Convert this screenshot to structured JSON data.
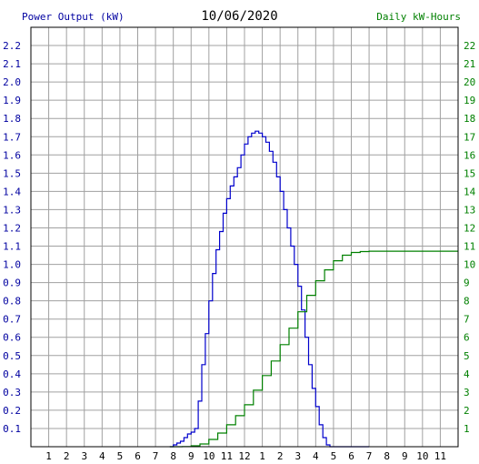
{
  "chart_data": {
    "type": "line",
    "title": "10/06/2020",
    "ylabel": "Power Output (kW)",
    "y2label": "Daily kW-Hours",
    "x_tick_labels": [
      "1",
      "2",
      "3",
      "4",
      "5",
      "6",
      "7",
      "8",
      "9",
      "10",
      "11",
      "12",
      "1",
      "2",
      "3",
      "4",
      "5",
      "6",
      "7",
      "8",
      "9",
      "10",
      "11"
    ],
    "xlim": [
      0,
      24
    ],
    "ylim": [
      0,
      2.3
    ],
    "y_ticks": [
      "0.1",
      "0.2",
      "0.3",
      "0.4",
      "0.5",
      "0.6",
      "0.7",
      "0.8",
      "0.9",
      "1.0",
      "1.1",
      "1.2",
      "1.3",
      "1.4",
      "1.5",
      "1.6",
      "1.7",
      "1.8",
      "1.9",
      "2.0",
      "2.1",
      "2.2"
    ],
    "y2lim": [
      0,
      23
    ],
    "y2_ticks": [
      "1",
      "2",
      "3",
      "4",
      "5",
      "6",
      "7",
      "8",
      "9",
      "10",
      "11",
      "12",
      "13",
      "14",
      "15",
      "16",
      "17",
      "18",
      "19",
      "20",
      "21",
      "22"
    ],
    "grid": true,
    "series": [
      {
        "name": "Power Output (kW)",
        "color": "#0000cc",
        "axis": "left",
        "x": [
          7.8,
          8.0,
          8.2,
          8.4,
          8.6,
          8.8,
          9.0,
          9.2,
          9.4,
          9.6,
          9.8,
          10.0,
          10.2,
          10.4,
          10.6,
          10.8,
          11.0,
          11.2,
          11.4,
          11.6,
          11.8,
          12.0,
          12.2,
          12.4,
          12.6,
          12.8,
          13.0,
          13.2,
          13.4,
          13.6,
          13.8,
          14.0,
          14.2,
          14.4,
          14.6,
          14.8,
          15.0,
          15.2,
          15.4,
          15.6,
          15.8,
          16.0,
          16.2,
          16.4,
          16.6,
          16.8,
          17.0,
          17.2,
          17.4,
          17.6,
          17.8,
          18.0,
          18.2,
          18.4,
          18.6,
          18.8,
          19.0
        ],
        "y": [
          0.0,
          0.01,
          0.02,
          0.03,
          0.05,
          0.07,
          0.08,
          0.1,
          0.25,
          0.45,
          0.62,
          0.8,
          0.95,
          1.08,
          1.18,
          1.28,
          1.36,
          1.43,
          1.48,
          1.53,
          1.6,
          1.66,
          1.7,
          1.72,
          1.73,
          1.72,
          1.7,
          1.67,
          1.62,
          1.56,
          1.48,
          1.4,
          1.3,
          1.2,
          1.1,
          1.0,
          0.88,
          0.75,
          0.6,
          0.45,
          0.32,
          0.22,
          0.12,
          0.05,
          0.01,
          0.0,
          0.0,
          0.0,
          0.0,
          0.0,
          0.0,
          0.0,
          0.0,
          0.0,
          0.0,
          0.0,
          0.0
        ]
      },
      {
        "name": "Daily kW-Hours",
        "color": "#008000",
        "axis": "right",
        "x": [
          7.8,
          8.5,
          9.0,
          9.5,
          10.0,
          10.5,
          11.0,
          11.5,
          12.0,
          12.5,
          13.0,
          13.5,
          14.0,
          14.5,
          15.0,
          15.5,
          16.0,
          16.5,
          17.0,
          17.5,
          18.0,
          18.5,
          19.0,
          20.0,
          21.0,
          22.0,
          23.0,
          24.0
        ],
        "y": [
          0.0,
          0.01,
          0.05,
          0.15,
          0.4,
          0.75,
          1.2,
          1.7,
          2.3,
          3.1,
          3.9,
          4.7,
          5.6,
          6.5,
          7.4,
          8.3,
          9.1,
          9.7,
          10.2,
          10.5,
          10.65,
          10.7,
          10.72,
          10.72,
          10.72,
          10.72,
          10.72,
          10.72
        ]
      }
    ]
  }
}
